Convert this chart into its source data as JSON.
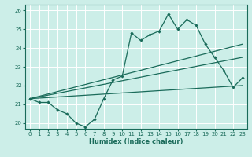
{
  "xlabel": "Humidex (Indice chaleur)",
  "ylabel": "",
  "bg_color": "#cceee8",
  "grid_color": "#ffffff",
  "line_color": "#1a6b5a",
  "xlim": [
    -0.5,
    23.5
  ],
  "ylim": [
    19.7,
    26.3
  ],
  "xticks": [
    0,
    1,
    2,
    3,
    4,
    5,
    6,
    7,
    8,
    9,
    10,
    11,
    12,
    13,
    14,
    15,
    16,
    17,
    18,
    19,
    20,
    21,
    22,
    23
  ],
  "yticks": [
    20,
    21,
    22,
    23,
    24,
    25,
    26
  ],
  "series1": [
    21.3,
    21.1,
    21.1,
    20.7,
    20.5,
    20.0,
    19.8,
    20.2,
    21.3,
    22.3,
    22.5,
    24.8,
    24.4,
    24.7,
    24.9,
    25.8,
    25.0,
    25.5,
    25.2,
    24.2,
    23.5,
    22.8,
    21.9,
    22.4
  ],
  "line1_x": [
    0,
    23
  ],
  "line1_y": [
    21.3,
    22.0
  ],
  "line2_x": [
    0,
    23
  ],
  "line2_y": [
    21.3,
    23.5
  ],
  "line3_x": [
    0,
    23
  ],
  "line3_y": [
    21.3,
    24.2
  ]
}
